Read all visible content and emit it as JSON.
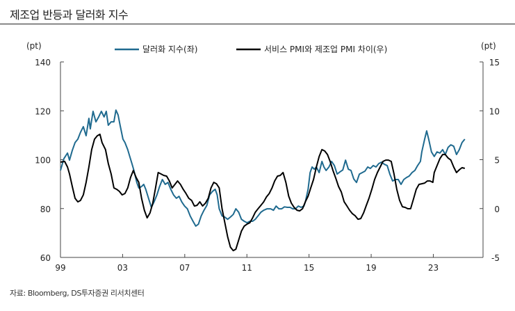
{
  "title": "제조업 반등과 달러화 지수",
  "source": "자료: Bloomberg, DS투자증권 리서치센터",
  "chart_data": {
    "type": "line",
    "title": "제조업 반등과 달러화 지수",
    "xlabel": "",
    "ylabel_left": "(pt)",
    "ylabel_right": "(pt)",
    "xlim": [
      1999,
      2026.2
    ],
    "ylim_left": [
      60,
      140
    ],
    "ylim_right": [
      -5,
      15
    ],
    "x_ticks": [
      1999,
      2003,
      2007,
      2011,
      2015,
      2019,
      2023
    ],
    "x_tick_labels": [
      "99",
      "03",
      "07",
      "11",
      "15",
      "19",
      "23"
    ],
    "y_ticks_left": [
      60,
      80,
      100,
      120,
      140
    ],
    "y_tick_labels_left": [
      "60",
      "80",
      "100",
      "120",
      "140"
    ],
    "y_ticks_right": [
      -5,
      0,
      5,
      10,
      15
    ],
    "y_tick_labels_right": [
      "-5",
      "0",
      "5",
      "10",
      "15"
    ],
    "grid": false,
    "legend_position": "top-center",
    "series": [
      {
        "name": "달러화 지수(좌)",
        "axis": "left",
        "color": "#1f6a8f",
        "x": [
          1999.0,
          1999.22,
          1999.45,
          1999.58,
          1999.76,
          1999.94,
          2000.12,
          2000.29,
          2000.47,
          2000.65,
          2000.83,
          2000.92,
          2001.1,
          2001.28,
          2001.46,
          2001.63,
          2001.81,
          2001.95,
          2002.08,
          2002.26,
          2002.44,
          2002.57,
          2002.71,
          2002.84,
          2003.02,
          2003.15,
          2003.33,
          2003.46,
          2003.6,
          2003.73,
          2003.91,
          2004.04,
          2004.22,
          2004.36,
          2004.49,
          2004.67,
          2004.85,
          2005.03,
          2005.21,
          2005.38,
          2005.56,
          2005.74,
          2005.92,
          2006.1,
          2006.28,
          2006.46,
          2006.63,
          2006.81,
          2006.99,
          2007.17,
          2007.35,
          2007.53,
          2007.71,
          2007.88,
          2008.06,
          2008.24,
          2008.42,
          2008.6,
          2008.78,
          2008.96,
          2009.09,
          2009.22,
          2009.4,
          2009.58,
          2009.76,
          2009.94,
          2010.12,
          2010.29,
          2010.47,
          2010.65,
          2010.83,
          2011.01,
          2011.19,
          2011.37,
          2011.54,
          2011.72,
          2011.9,
          2012.08,
          2012.3,
          2012.53,
          2012.71,
          2012.88,
          2013.06,
          2013.24,
          2013.42,
          2013.6,
          2013.78,
          2013.95,
          2014.13,
          2014.31,
          2014.49,
          2014.67,
          2014.76,
          2014.94,
          2015.07,
          2015.2,
          2015.34,
          2015.47,
          2015.65,
          2015.83,
          2015.96,
          2016.1,
          2016.28,
          2016.45,
          2016.63,
          2016.81,
          2016.99,
          2017.17,
          2017.35,
          2017.53,
          2017.7,
          2017.88,
          2018.06,
          2018.24,
          2018.42,
          2018.6,
          2018.78,
          2018.95,
          2019.13,
          2019.31,
          2019.49,
          2019.67,
          2019.85,
          2020.03,
          2020.2,
          2020.38,
          2020.56,
          2020.74,
          2020.92,
          2021.1,
          2021.28,
          2021.45,
          2021.63,
          2021.81,
          2021.99,
          2022.17,
          2022.26,
          2022.44,
          2022.57,
          2022.7,
          2022.88,
          2023.06,
          2023.24,
          2023.42,
          2023.6,
          2023.77,
          2023.95,
          2024.13,
          2024.31,
          2024.49,
          2024.67,
          2024.85,
          2025.03
        ],
        "values": [
          95.6,
          100.4,
          102.7,
          99.8,
          103.8,
          107.0,
          108.4,
          111.2,
          113.5,
          109.8,
          116.9,
          112.6,
          119.8,
          115.5,
          117.5,
          119.8,
          117.5,
          119.8,
          114.1,
          115.5,
          115.5,
          120.3,
          118.3,
          114.1,
          108.4,
          107.0,
          104.1,
          101.3,
          98.4,
          95.6,
          90.7,
          88.4,
          89.0,
          89.9,
          87.9,
          84.2,
          80.5,
          82.8,
          85.6,
          89.0,
          91.9,
          89.9,
          90.7,
          87.9,
          85.6,
          84.2,
          85.0,
          82.7,
          81.0,
          79.9,
          77.0,
          74.8,
          72.8,
          73.6,
          77.0,
          79.3,
          81.3,
          85.6,
          87.0,
          87.9,
          85.6,
          79.9,
          77.0,
          76.5,
          75.6,
          76.5,
          77.6,
          79.9,
          78.5,
          75.6,
          74.8,
          74.2,
          74.8,
          74.8,
          75.6,
          77.0,
          78.5,
          79.3,
          79.9,
          79.9,
          79.3,
          81.0,
          79.9,
          79.9,
          80.7,
          80.5,
          80.5,
          79.9,
          79.9,
          81.0,
          80.5,
          81.0,
          82.7,
          87.9,
          94.7,
          97.0,
          96.1,
          97.0,
          94.7,
          99.3,
          97.0,
          95.6,
          97.0,
          99.3,
          97.6,
          94.1,
          95.0,
          95.8,
          99.8,
          96.1,
          95.6,
          92.1,
          90.7,
          94.1,
          94.7,
          95.3,
          97.0,
          96.4,
          97.6,
          97.0,
          98.4,
          99.0,
          98.1,
          97.6,
          94.1,
          91.3,
          91.9,
          91.9,
          89.9,
          91.9,
          92.7,
          93.3,
          94.7,
          95.6,
          97.6,
          99.3,
          103.2,
          108.4,
          111.8,
          108.4,
          103.2,
          101.3,
          103.2,
          102.7,
          104.1,
          102.1,
          105.0,
          106.1,
          105.5,
          102.1,
          104.1,
          107.0,
          108.4
        ]
      },
      {
        "name": "서비스 PMI와 제조업 PMI 차이(우)",
        "axis": "right",
        "color": "#000000",
        "x": [
          1999.0,
          1999.27,
          1999.45,
          1999.58,
          1999.76,
          1999.94,
          2000.12,
          2000.29,
          2000.47,
          2000.65,
          2000.83,
          2001.01,
          2001.19,
          2001.37,
          2001.54,
          2001.68,
          2001.9,
          2002.08,
          2002.26,
          2002.44,
          2002.62,
          2002.79,
          2002.97,
          2003.15,
          2003.33,
          2003.51,
          2003.69,
          2003.87,
          2004.04,
          2004.22,
          2004.4,
          2004.58,
          2004.76,
          2004.94,
          2005.12,
          2005.29,
          2005.47,
          2005.65,
          2005.83,
          2006.01,
          2006.19,
          2006.37,
          2006.54,
          2006.72,
          2006.9,
          2007.08,
          2007.26,
          2007.44,
          2007.62,
          2007.79,
          2007.97,
          2008.15,
          2008.33,
          2008.51,
          2008.69,
          2008.87,
          2009.04,
          2009.22,
          2009.4,
          2009.58,
          2009.76,
          2009.94,
          2010.12,
          2010.29,
          2010.47,
          2010.65,
          2010.83,
          2011.01,
          2011.19,
          2011.37,
          2011.54,
          2011.72,
          2011.9,
          2012.08,
          2012.26,
          2012.44,
          2012.62,
          2012.79,
          2012.97,
          2013.15,
          2013.33,
          2013.51,
          2013.69,
          2013.86,
          2014.04,
          2014.22,
          2014.4,
          2014.58,
          2014.76,
          2014.94,
          2015.11,
          2015.29,
          2015.47,
          2015.65,
          2015.83,
          2016.01,
          2016.19,
          2016.36,
          2016.54,
          2016.72,
          2016.9,
          2017.08,
          2017.26,
          2017.44,
          2017.61,
          2017.79,
          2017.97,
          2018.15,
          2018.33,
          2018.51,
          2018.69,
          2018.86,
          2019.04,
          2019.22,
          2019.4,
          2019.58,
          2019.76,
          2019.94,
          2020.11,
          2020.29,
          2020.47,
          2020.65,
          2020.83,
          2021.01,
          2021.19,
          2021.36,
          2021.54,
          2021.72,
          2021.9,
          2022.08,
          2022.26,
          2022.44,
          2022.61,
          2022.79,
          2022.97,
          2023.06,
          2023.24,
          2023.42,
          2023.6,
          2023.77,
          2023.95,
          2024.13,
          2024.31,
          2024.49,
          2024.67,
          2024.85,
          2025.03
        ],
        "values": [
          4.75,
          4.82,
          4.25,
          3.54,
          2.26,
          1.05,
          0.69,
          0.83,
          1.4,
          2.68,
          4.25,
          6.03,
          7.1,
          7.45,
          7.6,
          6.74,
          6.03,
          4.61,
          3.54,
          2.11,
          1.97,
          1.76,
          1.4,
          1.54,
          2.11,
          3.18,
          3.89,
          3.18,
          2.68,
          1.05,
          -0.17,
          -0.95,
          -0.45,
          0.55,
          2.11,
          3.68,
          3.54,
          3.39,
          3.32,
          2.82,
          2.11,
          2.47,
          2.82,
          2.47,
          1.97,
          1.54,
          1.05,
          0.83,
          0.26,
          0.33,
          0.69,
          0.26,
          0.55,
          1.05,
          2.11,
          2.68,
          2.54,
          2.11,
          -0.02,
          -1.45,
          -2.87,
          -3.94,
          -4.3,
          -4.15,
          -3.23,
          -2.3,
          -1.8,
          -1.59,
          -1.45,
          -0.95,
          -0.38,
          -0.02,
          0.33,
          0.69,
          1.19,
          1.54,
          2.11,
          2.82,
          3.32,
          3.39,
          3.68,
          2.68,
          1.26,
          0.55,
          0.12,
          -0.17,
          -0.24,
          -0.02,
          0.69,
          1.26,
          2.11,
          2.97,
          4.25,
          5.32,
          6.03,
          5.89,
          5.53,
          4.82,
          3.89,
          3.11,
          2.26,
          1.69,
          0.69,
          0.26,
          -0.17,
          -0.52,
          -0.74,
          -1.09,
          -1.02,
          -0.45,
          0.33,
          1.05,
          1.97,
          2.97,
          3.68,
          4.25,
          4.82,
          4.96,
          4.96,
          4.82,
          3.54,
          1.97,
          0.83,
          0.19,
          0.12,
          -0.02,
          -0.02,
          0.97,
          1.97,
          2.47,
          2.54,
          2.61,
          2.82,
          2.82,
          2.68,
          3.68,
          4.39,
          5.1,
          5.53,
          5.53,
          5.17,
          4.96,
          4.25,
          3.68,
          3.96,
          4.18,
          4.11
        ]
      }
    ]
  }
}
